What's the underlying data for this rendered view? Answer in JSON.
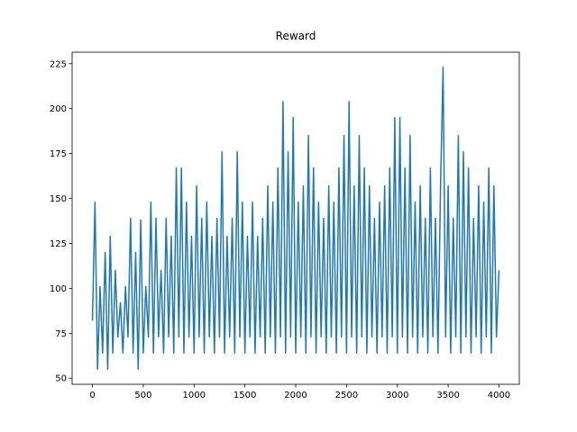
{
  "chart_data": {
    "type": "line",
    "title": "Reward",
    "x": [
      0,
      25,
      50,
      75,
      100,
      125,
      150,
      175,
      200,
      225,
      250,
      275,
      300,
      325,
      350,
      375,
      400,
      425,
      450,
      475,
      500,
      525,
      550,
      575,
      600,
      625,
      650,
      675,
      700,
      725,
      750,
      775,
      800,
      825,
      850,
      875,
      900,
      925,
      950,
      975,
      1000,
      1025,
      1050,
      1075,
      1100,
      1125,
      1150,
      1175,
      1200,
      1225,
      1250,
      1275,
      1300,
      1325,
      1350,
      1375,
      1400,
      1425,
      1450,
      1475,
      1500,
      1525,
      1550,
      1575,
      1600,
      1625,
      1650,
      1675,
      1700,
      1725,
      1750,
      1775,
      1800,
      1825,
      1850,
      1875,
      1900,
      1925,
      1950,
      1975,
      2000,
      2025,
      2050,
      2075,
      2100,
      2125,
      2150,
      2175,
      2200,
      2225,
      2250,
      2275,
      2300,
      2325,
      2350,
      2375,
      2400,
      2425,
      2450,
      2475,
      2500,
      2525,
      2550,
      2575,
      2600,
      2625,
      2650,
      2675,
      2700,
      2725,
      2750,
      2775,
      2800,
      2825,
      2850,
      2875,
      2900,
      2925,
      2950,
      2975,
      3000,
      3025,
      3050,
      3075,
      3100,
      3125,
      3150,
      3175,
      3200,
      3225,
      3250,
      3275,
      3300,
      3325,
      3350,
      3375,
      3400,
      3425,
      3450,
      3475,
      3500,
      3525,
      3550,
      3575,
      3600,
      3625,
      3650,
      3675,
      3700,
      3725,
      3750,
      3775,
      3800,
      3825,
      3850,
      3875,
      3900,
      3925,
      3950,
      3975,
      4000
    ],
    "series": [
      {
        "color": "#1f77b4",
        "values": [
          82,
          148,
          55,
          101,
          64,
          120,
          55,
          129,
          64,
          110,
          73,
          92,
          64,
          101,
          73,
          139,
          64,
          120,
          55,
          138,
          64,
          101,
          73,
          148,
          64,
          139,
          73,
          110,
          64,
          139,
          73,
          129,
          64,
          167,
          73,
          167,
          64,
          148,
          73,
          129,
          64,
          157,
          73,
          139,
          64,
          148,
          73,
          129,
          64,
          139,
          73,
          176,
          64,
          129,
          73,
          139,
          64,
          176,
          73,
          148,
          64,
          129,
          73,
          148,
          64,
          129,
          73,
          139,
          64,
          157,
          73,
          148,
          64,
          167,
          73,
          204,
          64,
          176,
          73,
          195,
          64,
          148,
          73,
          157,
          64,
          185,
          73,
          167,
          64,
          148,
          73,
          139,
          64,
          157,
          73,
          148,
          64,
          167,
          73,
          185,
          64,
          204,
          73,
          157,
          64,
          185,
          73,
          167,
          64,
          157,
          73,
          139,
          64,
          148,
          73,
          157,
          64,
          167,
          73,
          195,
          64,
          195,
          73,
          167,
          64,
          185,
          73,
          148,
          64,
          157,
          73,
          139,
          64,
          167,
          73,
          139,
          64,
          157,
          223,
          73,
          157,
          64,
          139,
          73,
          185,
          64,
          176,
          73,
          167,
          64,
          139,
          73,
          157,
          64,
          148,
          73,
          167,
          64,
          157,
          73,
          110
        ]
      }
    ],
    "xlim": [
      -200,
      4200
    ],
    "ylim": [
      46.6,
      231.4
    ],
    "xticks": [
      0,
      500,
      1000,
      1500,
      2000,
      2500,
      3000,
      3500,
      4000
    ],
    "yticks": [
      50,
      75,
      100,
      125,
      150,
      175,
      200,
      225
    ],
    "grid": false
  }
}
